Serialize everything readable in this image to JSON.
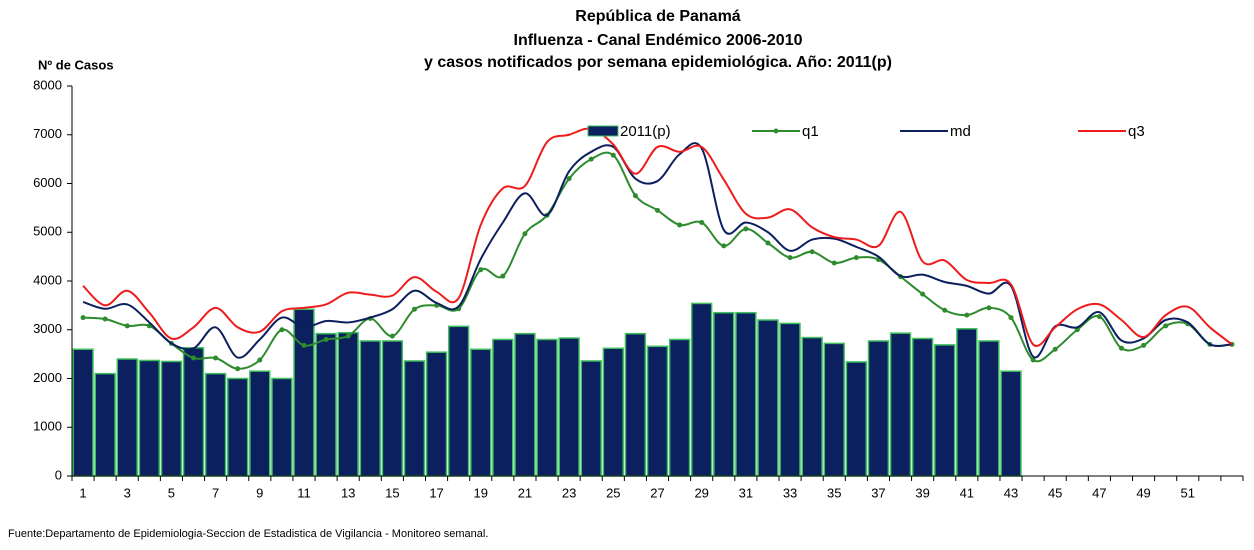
{
  "chart_data": {
    "type": "bar",
    "title_lines": [
      "República de Panamá",
      "Influenza - Canal Endémico  2006-2010",
      "y casos notificados por semana epidemiológica.  Año: 2011(p)"
    ],
    "y_label": "Nº de Casos",
    "source": "Fuente:Departamento de Epidemiologia-Seccion de Estadistica de Vigilancia - Monitoreo semanal.",
    "categories": [
      "1",
      null,
      "3",
      null,
      "5",
      null,
      "7",
      null,
      "9",
      null,
      "11",
      null,
      "13",
      null,
      "15",
      null,
      "17",
      null,
      "19",
      null,
      "21",
      null,
      "23",
      null,
      "25",
      null,
      "27",
      null,
      "29",
      null,
      "31",
      null,
      "33",
      null,
      "35",
      null,
      "37",
      null,
      "39",
      null,
      "41",
      null,
      "43",
      null,
      "45",
      null,
      "47",
      null,
      "49",
      null,
      "51",
      null,
      null
    ],
    "ylim": [
      0,
      8000
    ],
    "yticks": [
      0,
      1000,
      2000,
      3000,
      4000,
      5000,
      6000,
      7000,
      8000
    ],
    "grid": false,
    "legend": "top",
    "series": [
      {
        "name": "2011(p)",
        "type": "bar",
        "color": "#0c1f5e",
        "edge_color": "#3fbf5f",
        "values": [
          2600,
          2100,
          2400,
          2370,
          2350,
          2630,
          2100,
          2000,
          2150,
          2000,
          3420,
          2920,
          2940,
          2770,
          2770,
          2360,
          2540,
          3070,
          2600,
          2800,
          2920,
          2800,
          2830,
          2360,
          2620,
          2920,
          2660,
          2800,
          3540,
          3350,
          3350,
          3200,
          3130,
          2840,
          2720,
          2340,
          2770,
          2930,
          2820,
          2690,
          3020,
          2770,
          2150,
          null,
          null,
          null,
          null,
          null,
          null,
          null,
          null,
          null,
          null
        ]
      },
      {
        "name": "q1",
        "type": "line",
        "color": "#2e8b2e",
        "markers": true,
        "values": [
          3250,
          3220,
          3080,
          3080,
          2720,
          2420,
          2420,
          2200,
          2380,
          3000,
          2680,
          2800,
          2870,
          3230,
          2870,
          3420,
          3500,
          3430,
          4230,
          4100,
          4970,
          5350,
          6100,
          6500,
          6580,
          5750,
          5450,
          5150,
          5200,
          4720,
          5070,
          4780,
          4480,
          4600,
          4370,
          4480,
          4440,
          4090,
          3730,
          3400,
          3300,
          3450,
          3250,
          2380,
          2600,
          3000,
          3270,
          2620,
          2680,
          3080,
          3120,
          2700,
          2700
        ]
      },
      {
        "name": "md",
        "type": "line",
        "color": "#0c1f5e",
        "markers": false,
        "values": [
          3570,
          3430,
          3520,
          3150,
          2720,
          2620,
          3050,
          2430,
          2800,
          3250,
          3050,
          3180,
          3150,
          3250,
          3420,
          3800,
          3550,
          3480,
          4450,
          5200,
          5800,
          5350,
          6250,
          6650,
          6750,
          6100,
          6050,
          6600,
          6720,
          5050,
          5200,
          5000,
          4620,
          4850,
          4870,
          4700,
          4500,
          4100,
          4130,
          3980,
          3900,
          3740,
          3900,
          2450,
          3070,
          3050,
          3360,
          2780,
          2820,
          3200,
          3150,
          2700,
          2700
        ]
      },
      {
        "name": "q3",
        "type": "line",
        "color": "#ee1c1c",
        "markers": false,
        "values": [
          3900,
          3500,
          3800,
          3350,
          2820,
          3050,
          3450,
          3050,
          2960,
          3380,
          3450,
          3520,
          3760,
          3720,
          3700,
          4080,
          3780,
          3650,
          5150,
          5900,
          5950,
          6850,
          7000,
          7120,
          6800,
          6200,
          6750,
          6650,
          6750,
          6080,
          5380,
          5300,
          5470,
          5100,
          4900,
          4850,
          4720,
          5420,
          4400,
          4420,
          4020,
          3960,
          3930,
          2700,
          3050,
          3420,
          3520,
          3200,
          2850,
          3300,
          3470,
          3050,
          2700
        ]
      }
    ]
  }
}
